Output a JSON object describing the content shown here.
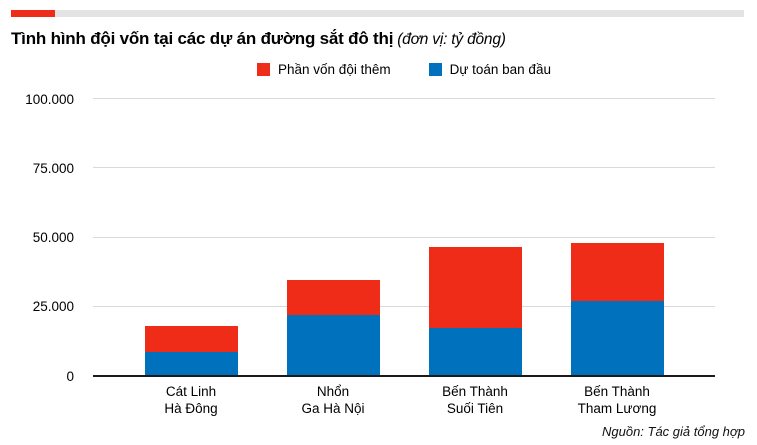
{
  "header": {
    "title": "Tình hình đội vốn tại các dự án đường sắt đô thị",
    "title_unit": "(đơn vị: tỷ đồng)",
    "accent_color": "#ee2c18",
    "strip_color": "#e3e3e3"
  },
  "chart_data": {
    "type": "bar",
    "stacked": true,
    "title": "Tình hình đội vốn tại các dự án đường sắt đô thị",
    "unit_label": "đơn vị: tỷ đồng",
    "categories": [
      [
        "Cát Linh",
        "Hà Đông"
      ],
      [
        "Nhổn",
        "Ga Hà Nội"
      ],
      [
        "Bến Thành",
        "Suối Tiên"
      ],
      [
        "Bến Thành",
        "Tham Lương"
      ]
    ],
    "series": [
      {
        "name": "Dự toán ban đầu",
        "color": "#0071bc",
        "values": [
          8800,
          22200,
          17400,
          27200
        ]
      },
      {
        "name": "Phần vốn đội thêm",
        "color": "#ee2c18",
        "values": [
          9200,
          12600,
          29100,
          21000
        ]
      }
    ],
    "totals": [
      18000,
      34800,
      46500,
      48200
    ],
    "legend_order": [
      "Phần vốn đội thêm",
      "Dự toán ban đầu"
    ],
    "legend_position": "top",
    "grid": true,
    "ylim": [
      0,
      100000
    ],
    "yticks": [
      0,
      25000,
      50000,
      75000,
      100000
    ],
    "ytick_labels": [
      "0",
      "25.000",
      "50.000",
      "75.000",
      "100.000"
    ],
    "xlabel": "",
    "ylabel": ""
  },
  "footer": {
    "source": "Nguồn: Tác giả tổng hợp"
  }
}
